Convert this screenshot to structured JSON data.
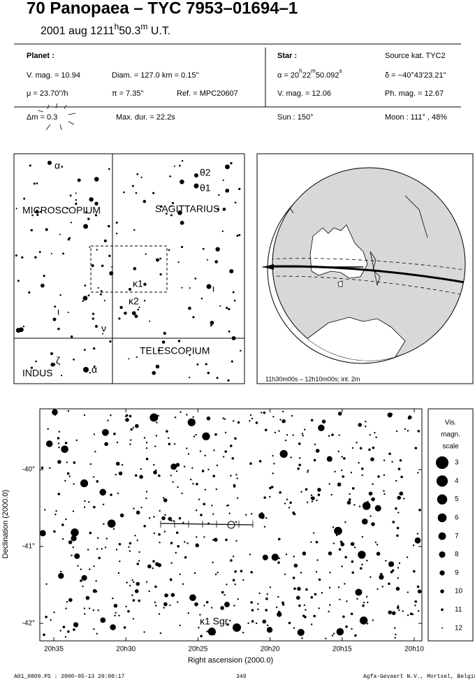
{
  "header": {
    "title": "70 Panopaea  –  TYC 7953–01694–1",
    "date": "2001 aug 12",
    "time": [
      "11",
      "h",
      "50.3",
      "m",
      " U.T."
    ]
  },
  "info": {
    "planet_label": "Planet :",
    "star_label": "Star :",
    "source": "Source kat.  TYC2",
    "vmag": "V. mag. = 10.94",
    "diam": "Diam. = 127.0 km = 0.15\"",
    "ra": [
      "α = 20",
      "h",
      "22",
      "m",
      "50.092",
      "s"
    ],
    "dec": "δ = −40°43'23.21\"",
    "mu": "μ = 23.70\"/h",
    "parallax": "π = 7.35\"",
    "ref": "Ref. = MPC20607",
    "star_vmag": "V. mag. = 12.06",
    "phmag": "Ph. mag. = 12.67",
    "dm": "Δm = 0.3",
    "maxdur": "Max. dur. = 22.2s",
    "sun": "Sun : 150°",
    "moon": "Moon : 111° , 48%"
  },
  "finder": {
    "constellations": [
      "MICROSCOPIUM",
      "SAGITTARIUS",
      "TELESCOPIUM",
      "INDUS"
    ],
    "stars": [
      "α",
      "θ2",
      "θ1",
      "κ1",
      "κ2",
      "ι",
      "ι",
      "ν",
      "ζ",
      "α"
    ]
  },
  "globe": {
    "caption": "11h30m00s – 12h10m00s; int.  2m"
  },
  "star_chart": {
    "xlabel": "Right ascension (2000.0)",
    "ylabel": "Declination (2000.0)",
    "xticks": [
      "20h35",
      "20h30",
      "20h25",
      "20h20",
      "20h15",
      "20h10"
    ],
    "yticks": [
      "-40°",
      "-41°",
      "-42°"
    ],
    "target": "κ1 Sgr",
    "scale_title": [
      "Vis.",
      "magn.",
      "scale"
    ],
    "magnitudes": [
      3,
      4,
      5,
      6,
      7,
      8,
      9,
      10,
      11,
      12
    ]
  },
  "footer": {
    "file": "A01_0809.PS : 2000-05-13 20:00:17",
    "page": "349",
    "credit": "Agfa-Gevaert N.V., Mortsel, Belgium"
  }
}
